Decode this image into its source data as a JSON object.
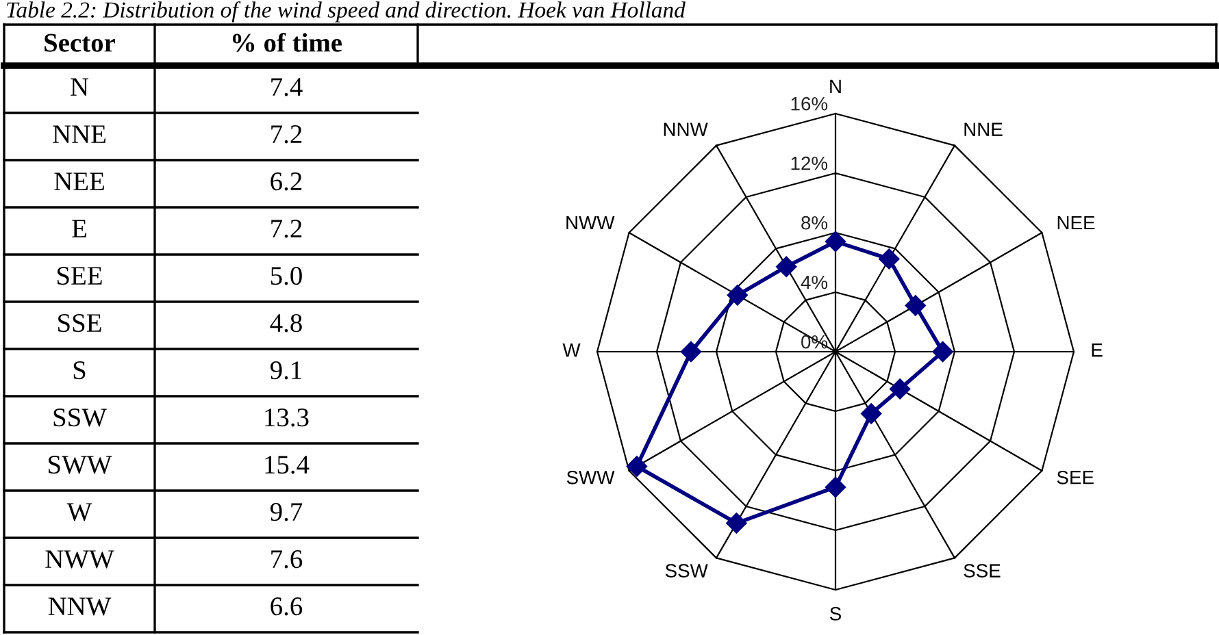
{
  "chart_data": {
    "type": "radar",
    "title": "Table 2.2: Distribution of the wind speed and direction. Hoek van Holland",
    "categories": [
      "N",
      "NNE",
      "NEE",
      "E",
      "SEE",
      "SSE",
      "S",
      "SSW",
      "SWW",
      "W",
      "NWW",
      "NNW"
    ],
    "series": [
      {
        "color": "#000080",
        "values": [
          7.4,
          7.2,
          6.2,
          7.2,
          5.0,
          4.8,
          9.1,
          13.3,
          15.4,
          9.7,
          7.6,
          6.6
        ]
      }
    ],
    "value_labels": [
      "7.4",
      "7.2",
      "6.2",
      "7.2",
      "5.0",
      "4.8",
      "9.1",
      "13.3",
      "15.4",
      "9.7",
      "7.6",
      "6.6"
    ],
    "ylim": [
      0,
      16
    ],
    "yticks": [
      {
        "value": 0,
        "label": "0%"
      },
      {
        "value": 4,
        "label": "4%"
      },
      {
        "value": 8,
        "label": "8%"
      },
      {
        "value": 12,
        "label": "12%"
      },
      {
        "value": 16,
        "label": "16%"
      }
    ],
    "marker": "diamond",
    "line_style": "solid",
    "grid": true,
    "annotations": [
      "Sector",
      "% of time"
    ]
  }
}
